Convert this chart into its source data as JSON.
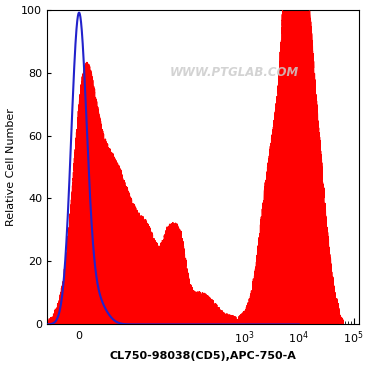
{
  "title": "",
  "xlabel": "CL750-98038(CD5),APC-750-A",
  "ylabel": "Relative Cell Number",
  "ylim": [
    0,
    100
  ],
  "yticks": [
    0,
    20,
    40,
    60,
    80,
    100
  ],
  "watermark": "WWW.PTGLAB.COM",
  "background_color": "#ffffff",
  "blue_color": "#2222cc",
  "red_color": "#ff0000",
  "xlim": [
    -0.58,
    5.1
  ],
  "xtick_positions": [
    0,
    3,
    4,
    5
  ],
  "xtick_labels": [
    "0",
    "10^3",
    "10^4",
    "10^5"
  ]
}
